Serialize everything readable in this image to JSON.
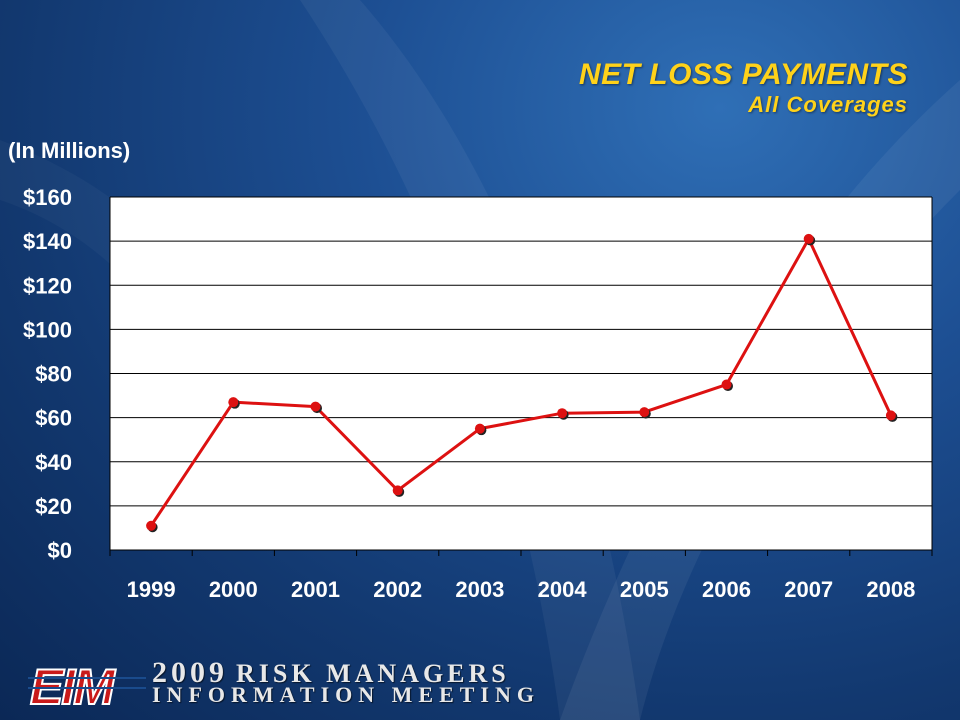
{
  "title": "NET LOSS PAYMENTS",
  "subtitle": "All Coverages",
  "units_label": "(In Millions)",
  "footer": {
    "logo": "EIM",
    "year": "2009",
    "line1": "RISK MANAGERS",
    "line2": "INFORMATION MEETING"
  },
  "colors": {
    "title": "#ffd21a",
    "series": "#dd1111",
    "grid": "#000000",
    "plot_background": "#ffffff"
  },
  "chart_data": {
    "type": "line",
    "title": "NET LOSS PAYMENTS",
    "subtitle": "All Coverages",
    "ylabel": "(In Millions)",
    "x": [
      "1999",
      "2000",
      "2001",
      "2002",
      "2003",
      "2004",
      "2005",
      "2006",
      "2007",
      "2008"
    ],
    "series": [
      {
        "values": [
          11,
          67,
          65,
          27,
          55,
          62,
          62.5,
          75,
          141,
          61
        ]
      }
    ],
    "ylim": [
      0,
      160
    ],
    "yticks": [
      0,
      20,
      40,
      60,
      80,
      100,
      120,
      140,
      160
    ],
    "ytick_labels": [
      "$0",
      "$20",
      "$40",
      "$60",
      "$80",
      "$100",
      "$120",
      "$140",
      "$160"
    ],
    "grid": true,
    "legend": "none"
  }
}
